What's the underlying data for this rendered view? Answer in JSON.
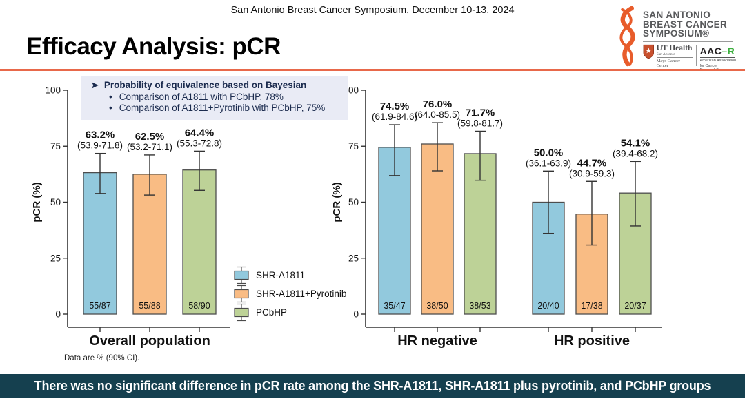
{
  "header": {
    "conference_line": "San Antonio Breast Cancer Symposium, December 10-13, 2024",
    "title": "Efficacy Analysis: pCR",
    "logo": {
      "name_lines": [
        "SAN ANTONIO",
        "BREAST CANCER",
        "SYMPOSIUM®"
      ],
      "ut_health": {
        "name": "UT Health",
        "sub": "San Antonio",
        "center": "Mays Cancer Center"
      },
      "aacr": {
        "wordmark_prefix": "AAC",
        "wordmark_suffix": "R",
        "sub1": "American Association",
        "sub2": "for Cancer Research®"
      }
    }
  },
  "bayesian_box": {
    "heading": "Probability of equivalence based on Bayesian",
    "bullets": [
      "Comparison of A1811 with PCbHP, 78%",
      "Comparison of A1811+Pyrotinib with PCbHP, 75%"
    ]
  },
  "legend": {
    "items": [
      {
        "label": "SHR-A1811",
        "color": "#92C9DD"
      },
      {
        "label": "SHR-A1811+Pyrotinib",
        "color": "#F9BC84"
      },
      {
        "label": "PCbHP",
        "color": "#BDD297"
      }
    ]
  },
  "footnote": "Data are % (90% CI).",
  "banner": {
    "text": "There was no significant difference in pCR rate among the SHR-A1811, SHR-A1811 plus pyrotinib, and PCbHP groups",
    "bg": "#15404F"
  },
  "chart_data": [
    {
      "type": "bar",
      "ylabel": "pCR (%)",
      "ylim": [
        0,
        100
      ],
      "yticks": [
        0,
        25,
        50,
        75,
        100
      ],
      "grid": false,
      "error_bars": "90% CI",
      "groups": [
        {
          "label": "Overall population",
          "bars": [
            {
              "series": "SHR-A1811",
              "value": 63.2,
              "value_label": "63.2%",
              "ci": [
                53.9,
                71.8
              ],
              "ci_label": "(53.9-71.8)",
              "n_label": "55/87"
            },
            {
              "series": "SHR-A1811+Pyrotinib",
              "value": 62.5,
              "value_label": "62.5%",
              "ci": [
                53.2,
                71.1
              ],
              "ci_label": "(53.2-71.1)",
              "n_label": "55/88"
            },
            {
              "series": "PCbHP",
              "value": 64.4,
              "value_label": "64.4%",
              "ci": [
                55.3,
                72.8
              ],
              "ci_label": "(55.3-72.8)",
              "n_label": "58/90"
            }
          ]
        }
      ]
    },
    {
      "type": "bar",
      "ylabel": "pCR (%)",
      "ylim": [
        0,
        100
      ],
      "yticks": [
        0,
        25,
        50,
        75,
        100
      ],
      "grid": false,
      "error_bars": "90% CI",
      "groups": [
        {
          "label": "HR negative",
          "bars": [
            {
              "series": "SHR-A1811",
              "value": 74.5,
              "value_label": "74.5%",
              "ci": [
                61.9,
                84.6
              ],
              "ci_label": "(61.9-84.6)",
              "n_label": "35/47"
            },
            {
              "series": "SHR-A1811+Pyrotinib",
              "value": 76.0,
              "value_label": "76.0%",
              "ci": [
                64.0,
                85.5
              ],
              "ci_label": "(64.0-85.5)",
              "n_label": "38/50"
            },
            {
              "series": "PCbHP",
              "value": 71.7,
              "value_label": "71.7%",
              "ci": [
                59.8,
                81.7
              ],
              "ci_label": "(59.8-81.7)",
              "n_label": "38/53"
            }
          ]
        },
        {
          "label": "HR positive",
          "bars": [
            {
              "series": "SHR-A1811",
              "value": 50.0,
              "value_label": "50.0%",
              "ci": [
                36.1,
                63.9
              ],
              "ci_label": "(36.1-63.9)",
              "n_label": "20/40"
            },
            {
              "series": "SHR-A1811+Pyrotinib",
              "value": 44.7,
              "value_label": "44.7%",
              "ci": [
                30.9,
                59.3
              ],
              "ci_label": "(30.9-59.3)",
              "n_label": "17/38"
            },
            {
              "series": "PCbHP",
              "value": 54.1,
              "value_label": "54.1%",
              "ci": [
                39.4,
                68.2
              ],
              "ci_label": "(39.4-68.2)",
              "n_label": "20/37"
            }
          ]
        }
      ]
    }
  ]
}
